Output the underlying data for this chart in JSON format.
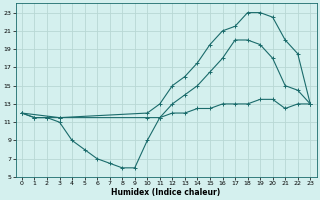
{
  "xlabel": "Humidex (Indice chaleur)",
  "bg_color": "#d4f0ee",
  "grid_color": "#b8d8d4",
  "line_color": "#1a6b6b",
  "xlim": [
    -0.5,
    23.5
  ],
  "ylim": [
    5,
    24
  ],
  "xticks": [
    0,
    1,
    2,
    3,
    4,
    5,
    6,
    7,
    8,
    9,
    10,
    11,
    12,
    13,
    14,
    15,
    16,
    17,
    18,
    19,
    20,
    21,
    22,
    23
  ],
  "yticks": [
    5,
    7,
    9,
    11,
    13,
    15,
    17,
    19,
    21,
    23
  ],
  "line1_x": [
    0,
    1,
    2,
    3,
    10,
    11,
    12,
    13,
    14,
    15,
    16,
    17,
    18,
    19,
    20,
    21,
    22,
    23
  ],
  "line1_y": [
    12,
    11.5,
    11.5,
    11.5,
    11.5,
    11.5,
    12,
    12,
    12.5,
    12.5,
    13,
    13,
    13,
    13.5,
    13.5,
    12.5,
    13,
    13
  ],
  "line2_x": [
    0,
    1,
    2,
    3,
    4,
    5,
    6,
    7,
    8,
    9,
    10,
    11,
    12,
    13,
    14,
    15,
    16,
    17,
    18,
    19,
    20,
    21,
    22,
    23
  ],
  "line2_y": [
    12,
    11.5,
    11.5,
    11,
    9,
    8,
    7,
    6.5,
    6,
    6,
    9,
    11.5,
    13,
    14,
    15,
    16.5,
    18,
    20,
    20,
    19.5,
    18,
    15,
    14.5,
    13
  ],
  "line3_x": [
    0,
    3,
    10,
    11,
    12,
    13,
    14,
    15,
    16,
    17,
    18,
    19,
    20,
    21,
    22,
    23
  ],
  "line3_y": [
    12,
    11.5,
    12,
    13,
    15,
    16,
    17.5,
    19.5,
    21,
    21.5,
    23,
    23,
    22.5,
    20,
    18.5,
    13
  ]
}
